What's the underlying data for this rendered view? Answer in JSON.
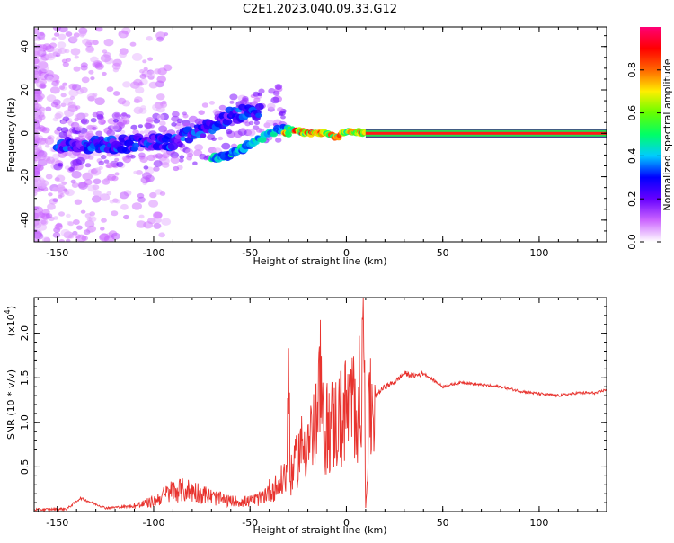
{
  "title": "C2E1.2023.040.09.33.G12",
  "chart_data": [
    {
      "type": "heatmap",
      "xlabel": "Height of straight line (km)",
      "ylabel": "Frequency (Hz)",
      "xlim": [
        -162,
        135
      ],
      "ylim": [
        -50,
        49
      ],
      "xticks": [
        -150,
        -100,
        -50,
        0,
        50,
        100
      ],
      "yticks": [
        -40,
        -20,
        0,
        20,
        40
      ],
      "colorbar": {
        "label": "Normalized spectral amplitude",
        "range": [
          0,
          1
        ],
        "ticks": [
          "0.0",
          "0.2",
          "0.4",
          "0.6",
          "0.8"
        ],
        "tick_values": [
          0,
          0.2,
          0.4,
          0.6,
          0.8
        ],
        "colors": [
          "#ffffff",
          "#cc66ff",
          "#6600ff",
          "#0000ff",
          "#00ccff",
          "#00ff66",
          "#66ff00",
          "#ffee00",
          "#ff6600",
          "#ff0000",
          "#ff0077"
        ]
      },
      "ridge": [
        {
          "x": -150,
          "y": -5
        },
        {
          "x": -120,
          "y": -5
        },
        {
          "x": -90,
          "y": -4
        },
        {
          "x": -70,
          "y": 3
        },
        {
          "x": -60,
          "y": 8
        },
        {
          "x": -50,
          "y": 10
        }
      ],
      "lower_branch": [
        {
          "x": -70,
          "y": -12
        },
        {
          "x": -60,
          "y": -10
        },
        {
          "x": -50,
          "y": -5
        },
        {
          "x": -40,
          "y": 0
        },
        {
          "x": -30,
          "y": 3
        }
      ],
      "main_trace": [
        {
          "x": -30,
          "y": 2
        },
        {
          "x": -25,
          "y": 1
        },
        {
          "x": -20,
          "y": 0
        },
        {
          "x": -10,
          "y": 0
        },
        {
          "x": -5,
          "y": -2
        },
        {
          "x": 0,
          "y": 1
        },
        {
          "x": 10,
          "y": 0
        },
        {
          "x": 135,
          "y": 0
        }
      ]
    },
    {
      "type": "line",
      "xlabel": "Height of straight line (km)",
      "ylabel": "SNR (10 * v/v)",
      "yscale_label": "(x10",
      "yscale_exp": "4",
      "yscale_close": ")",
      "xlim": [
        -162,
        135
      ],
      "ylim": [
        0,
        2.4
      ],
      "xticks": [
        -150,
        -100,
        -50,
        0,
        50,
        100
      ],
      "yticks": [
        0.5,
        1.0,
        1.5,
        2.0
      ],
      "ytick_labels": [
        "0.5",
        "1.0",
        "1.5",
        "2.0"
      ],
      "color": "#e8332e",
      "x": [
        -162,
        -145,
        -138,
        -125,
        -110,
        -100,
        -90,
        -80,
        -70,
        -60,
        -50,
        -45,
        -40,
        -35,
        -31,
        -30,
        -29,
        -27,
        -25,
        -20,
        -15,
        -14,
        -12,
        -10,
        -5,
        0,
        5,
        8,
        9,
        10,
        12,
        15,
        20,
        25,
        30,
        35,
        40,
        50,
        60,
        70,
        80,
        90,
        100,
        110,
        120,
        130,
        135
      ],
      "y": [
        0.02,
        0.03,
        0.15,
        0.04,
        0.06,
        0.12,
        0.25,
        0.25,
        0.17,
        0.12,
        0.12,
        0.15,
        0.25,
        0.3,
        0.45,
        1.72,
        0.4,
        0.5,
        0.7,
        0.85,
        1.0,
        1.62,
        0.9,
        1.0,
        1.05,
        1.2,
        1.25,
        1.38,
        2.38,
        0.1,
        1.15,
        1.3,
        1.4,
        1.45,
        1.55,
        1.52,
        1.55,
        1.4,
        1.45,
        1.42,
        1.4,
        1.35,
        1.32,
        1.3,
        1.33,
        1.33,
        1.37
      ]
    }
  ]
}
